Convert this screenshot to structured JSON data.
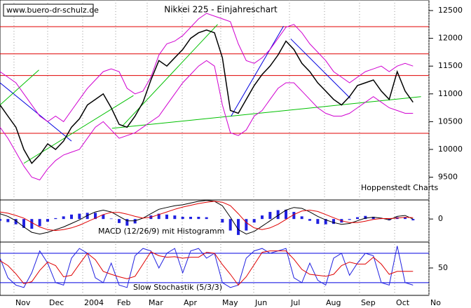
{
  "chart_data": [
    {
      "type": "line",
      "title": "Nikkei 225 - Einjahreschart",
      "annotations": [
        "www.buero-dr-schulz.de",
        "Hoppenstedt Charts"
      ],
      "x": [
        0,
        1,
        2,
        3,
        4,
        5,
        6,
        7,
        8,
        9,
        10,
        11,
        12,
        13,
        14,
        15,
        16,
        17,
        18,
        19,
        20,
        21,
        22,
        23,
        24,
        25,
        26,
        27,
        28,
        29,
        30,
        31,
        32,
        33,
        34,
        35,
        36,
        37,
        38,
        39,
        40,
        41,
        42,
        43,
        44,
        45,
        46,
        47,
        48,
        49,
        50,
        51,
        52
      ],
      "xlim": [
        0,
        54
      ],
      "xticks": [
        {
          "value": 1.76,
          "label": "Nov"
        },
        {
          "value": 6.0,
          "label": "Dec"
        },
        {
          "value": 10.41,
          "label": "2004"
        },
        {
          "value": 14.56,
          "label": "Feb"
        },
        {
          "value": 18.53,
          "label": "Mar"
        },
        {
          "value": 22.94,
          "label": "Apr"
        },
        {
          "value": 27.79,
          "label": "May"
        },
        {
          "value": 31.94,
          "label": "Jun"
        },
        {
          "value": 36.44,
          "label": "Jul"
        },
        {
          "value": 40.85,
          "label": "Aug"
        },
        {
          "value": 45.26,
          "label": "Sep"
        },
        {
          "value": 49.68,
          "label": "Oct"
        },
        {
          "value": 54.0,
          "label": "No"
        }
      ],
      "ylim": [
        9090,
        12690
      ],
      "yticks": [
        9500,
        10000,
        10500,
        11000,
        11500,
        12000,
        12500
      ],
      "grid": true,
      "series": [
        {
          "color": "#000000",
          "values": [
            10800,
            10600,
            10400,
            10000,
            9750,
            9900,
            10100,
            10000,
            10150,
            10400,
            10550,
            10800,
            10900,
            11000,
            10750,
            10450,
            10400,
            10600,
            10850,
            11250,
            11600,
            11500,
            11650,
            11800,
            12000,
            12100,
            12150,
            12100,
            11650,
            10700,
            10650,
            10900,
            11150,
            11350,
            11500,
            11700,
            11950,
            11800,
            11550,
            11400,
            11200,
            11050,
            10900,
            10800,
            10950,
            11150,
            11200,
            11250,
            11050,
            10900,
            11400,
            11050,
            10850
          ]
        },
        {
          "color": "#d000d0",
          "values": [
            11400,
            11300,
            11200,
            11000,
            10800,
            10600,
            10500,
            10600,
            10500,
            10700,
            10900,
            11100,
            11250,
            11400,
            11450,
            11400,
            11100,
            11000,
            11050,
            11300,
            11700,
            11900,
            11950,
            12050,
            12200,
            12350,
            12450,
            12400,
            12350,
            12300,
            11900,
            11600,
            11550,
            11650,
            11800,
            12000,
            12200,
            12250,
            12100,
            11900,
            11750,
            11600,
            11400,
            11300,
            11200,
            11300,
            11400,
            11450,
            11500,
            11400,
            11500,
            11550,
            11500
          ]
        },
        {
          "color": "#d000d0",
          "values": [
            10400,
            10200,
            9950,
            9700,
            9500,
            9450,
            9650,
            9800,
            9900,
            9950,
            10000,
            10200,
            10400,
            10500,
            10350,
            10200,
            10250,
            10300,
            10400,
            10500,
            10600,
            10800,
            11000,
            11200,
            11350,
            11500,
            11600,
            11500,
            10800,
            10300,
            10250,
            10350,
            10600,
            10700,
            10900,
            11100,
            11200,
            11200,
            11050,
            10900,
            10750,
            10650,
            10600,
            10600,
            10650,
            10750,
            10850,
            10950,
            10850,
            10750,
            10700,
            10650,
            10650
          ]
        }
      ],
      "hlines": {
        "color": "#e00000",
        "values": [
          12210,
          11720,
          11330,
          10290
        ]
      },
      "trendlines": [
        {
          "color": "#0000e0",
          "points": [
            [
              0,
              11200
            ],
            [
              9,
              10150
            ]
          ]
        },
        {
          "color": "#00c000",
          "points": [
            [
              0,
              10800
            ],
            [
              4.9,
              11430
            ]
          ]
        },
        {
          "color": "#00c000",
          "points": [
            [
              3,
              9750
            ],
            [
              16.8,
              10970
            ]
          ]
        },
        {
          "color": "#00c000",
          "points": [
            [
              15.4,
              10420
            ],
            [
              27.4,
              12250
            ]
          ]
        },
        {
          "color": "#00c000",
          "points": [
            [
              14.1,
              10380
            ],
            [
              53,
              10950
            ]
          ]
        },
        {
          "color": "#0000e0",
          "points": [
            [
              29.1,
              10600
            ],
            [
              35.7,
              12220
            ]
          ]
        },
        {
          "color": "#0000e0",
          "points": [
            [
              36.6,
              11990
            ],
            [
              44.1,
              10920
            ]
          ]
        }
      ]
    },
    {
      "type": "combo",
      "title": "MACD (12/26/9) mit Histogramm",
      "ylim": [
        -260,
        215
      ],
      "yticks": [
        0
      ],
      "series": [
        {
          "type": "bar",
          "color": "#2020e0",
          "values": [
            -20,
            -35,
            -60,
            -100,
            -110,
            -80,
            -30,
            10,
            30,
            50,
            60,
            70,
            70,
            50,
            5,
            -45,
            -75,
            -50,
            0,
            40,
            60,
            50,
            40,
            25,
            25,
            25,
            20,
            0,
            -40,
            -130,
            -180,
            -130,
            -40,
            40,
            80,
            100,
            105,
            80,
            30,
            -20,
            -55,
            -60,
            -55,
            -40,
            -10,
            20,
            35,
            25,
            5,
            -15,
            20,
            20,
            -15
          ]
        },
        {
          "type": "line",
          "color": "#000000",
          "values": [
            60,
            30,
            -20,
            -90,
            -150,
            -170,
            -150,
            -120,
            -90,
            -50,
            -10,
            40,
            80,
            100,
            80,
            30,
            -20,
            -20,
            10,
            60,
            110,
            130,
            150,
            160,
            180,
            200,
            210,
            200,
            150,
            20,
            -120,
            -170,
            -140,
            -80,
            -20,
            40,
            100,
            130,
            120,
            80,
            30,
            -10,
            -40,
            -60,
            -50,
            -20,
            10,
            20,
            10,
            -10,
            30,
            40,
            0
          ]
        },
        {
          "type": "line",
          "color": "#e00000",
          "values": [
            80,
            65,
            40,
            10,
            -40,
            -90,
            -120,
            -130,
            -120,
            -100,
            -70,
            -30,
            10,
            50,
            75,
            75,
            55,
            30,
            10,
            20,
            50,
            80,
            110,
            135,
            155,
            175,
            190,
            200,
            190,
            150,
            60,
            -40,
            -100,
            -120,
            -100,
            -60,
            -5,
            50,
            90,
            100,
            85,
            50,
            15,
            -20,
            -40,
            -40,
            -25,
            -5,
            5,
            5,
            10,
            20,
            15
          ]
        }
      ]
    },
    {
      "type": "line",
      "title": "Slow Stochastik (5/3/3)",
      "ylim": [
        -6,
        103
      ],
      "yticks": [
        50
      ],
      "hlines": {
        "color": "#0000e0",
        "values": [
          20,
          80
        ]
      },
      "series": [
        {
          "color": "#2020e0",
          "values": [
            70,
            30,
            15,
            10,
            40,
            85,
            60,
            20,
            15,
            70,
            90,
            80,
            30,
            20,
            60,
            15,
            10,
            75,
            90,
            85,
            50,
            80,
            90,
            40,
            85,
            90,
            70,
            80,
            20,
            10,
            15,
            70,
            85,
            90,
            80,
            85,
            90,
            30,
            20,
            60,
            25,
            15,
            70,
            80,
            35,
            60,
            80,
            75,
            20,
            15,
            95,
            20,
            15
          ]
        },
        {
          "color": "#e00000",
          "values": [
            65,
            55,
            38,
            18,
            22,
            45,
            62,
            55,
            32,
            35,
            58,
            80,
            67,
            43,
            37,
            32,
            28,
            33,
            58,
            83,
            75,
            72,
            73,
            70,
            72,
            72,
            82,
            80,
            57,
            37,
            15,
            32,
            57,
            82,
            85,
            85,
            85,
            68,
            47,
            37,
            35,
            33,
            37,
            55,
            62,
            58,
            58,
            72,
            58,
            37,
            43,
            43,
            43
          ]
        }
      ]
    }
  ]
}
